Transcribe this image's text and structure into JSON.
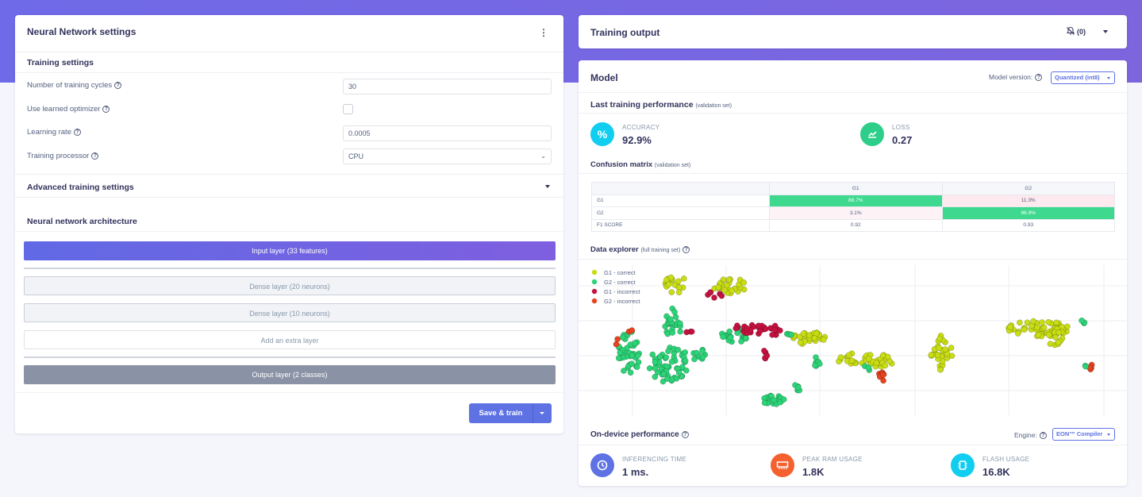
{
  "left_panel": {
    "title": "Neural Network settings",
    "menu_glyph": "⋮",
    "training_settings": {
      "heading": "Training settings",
      "cycles_label": "Number of training cycles",
      "cycles_value": "30",
      "optimizer_label": "Use learned optimizer",
      "lr_label": "Learning rate",
      "lr_value": "0.0005",
      "processor_label": "Training processor",
      "processor_value": "CPU"
    },
    "advanced_label": "Advanced training settings",
    "arch_heading": "Neural network architecture",
    "layers": {
      "input": "Input layer (33 features)",
      "dense1": "Dense layer (20 neurons)",
      "dense2": "Dense layer (10 neurons)",
      "extra": "Add an extra layer",
      "output": "Output layer (2 classes)"
    },
    "save_label": "Save & train"
  },
  "training_output": {
    "title": "Training output",
    "count": "(0)"
  },
  "model": {
    "title": "Model",
    "version_label": "Model version:",
    "version_value": "Quantized (int8)",
    "perf_heading": "Last training performance",
    "perf_note": "(validation set)",
    "accuracy_label": "ACCURACY",
    "accuracy_value": "92.9%",
    "loss_label": "LOSS",
    "loss_value": "0.27",
    "cm_heading": "Confusion matrix",
    "cm_note": "(validation set)",
    "confusion_matrix": {
      "columns": [
        "G1",
        "G2"
      ],
      "rows": [
        {
          "label": "G1",
          "cells": [
            "88.7%",
            "11.3%"
          ]
        },
        {
          "label": "G2",
          "cells": [
            "3.1%",
            "96.9%"
          ]
        },
        {
          "label": "F1 SCORE",
          "cells": [
            "0.92",
            "0.93"
          ]
        }
      ]
    },
    "explorer_heading": "Data explorer",
    "explorer_note": "(full training set)",
    "legend": [
      {
        "label": "G1 - correct",
        "color": "#c8dd13"
      },
      {
        "label": "G2 - correct",
        "color": "#2cd377"
      },
      {
        "label": "G1 - incorrect",
        "color": "#c4123f"
      },
      {
        "label": "G2 - incorrect",
        "color": "#e8421f"
      }
    ],
    "ondevice_heading": "On-device performance",
    "engine_label": "Engine:",
    "engine_value": "EON™ Compiler",
    "inferencing_label": "INFERENCING TIME",
    "inferencing_value": "1 ms.",
    "ram_label": "PEAK RAM USAGE",
    "ram_value": "1.8K",
    "flash_label": "FLASH USAGE",
    "flash_value": "16.8K"
  },
  "colors": {
    "accent": "#5e72e4",
    "gradient_from": "#6f6ae8",
    "gradient_to": "#7d65de",
    "g1_correct": "#c8dd13",
    "g2_correct": "#2cd377",
    "g1_incorrect": "#c4123f",
    "g2_incorrect": "#e8421f",
    "cm_good": "#3ed88e",
    "cm_bad": "#fde9ee"
  }
}
